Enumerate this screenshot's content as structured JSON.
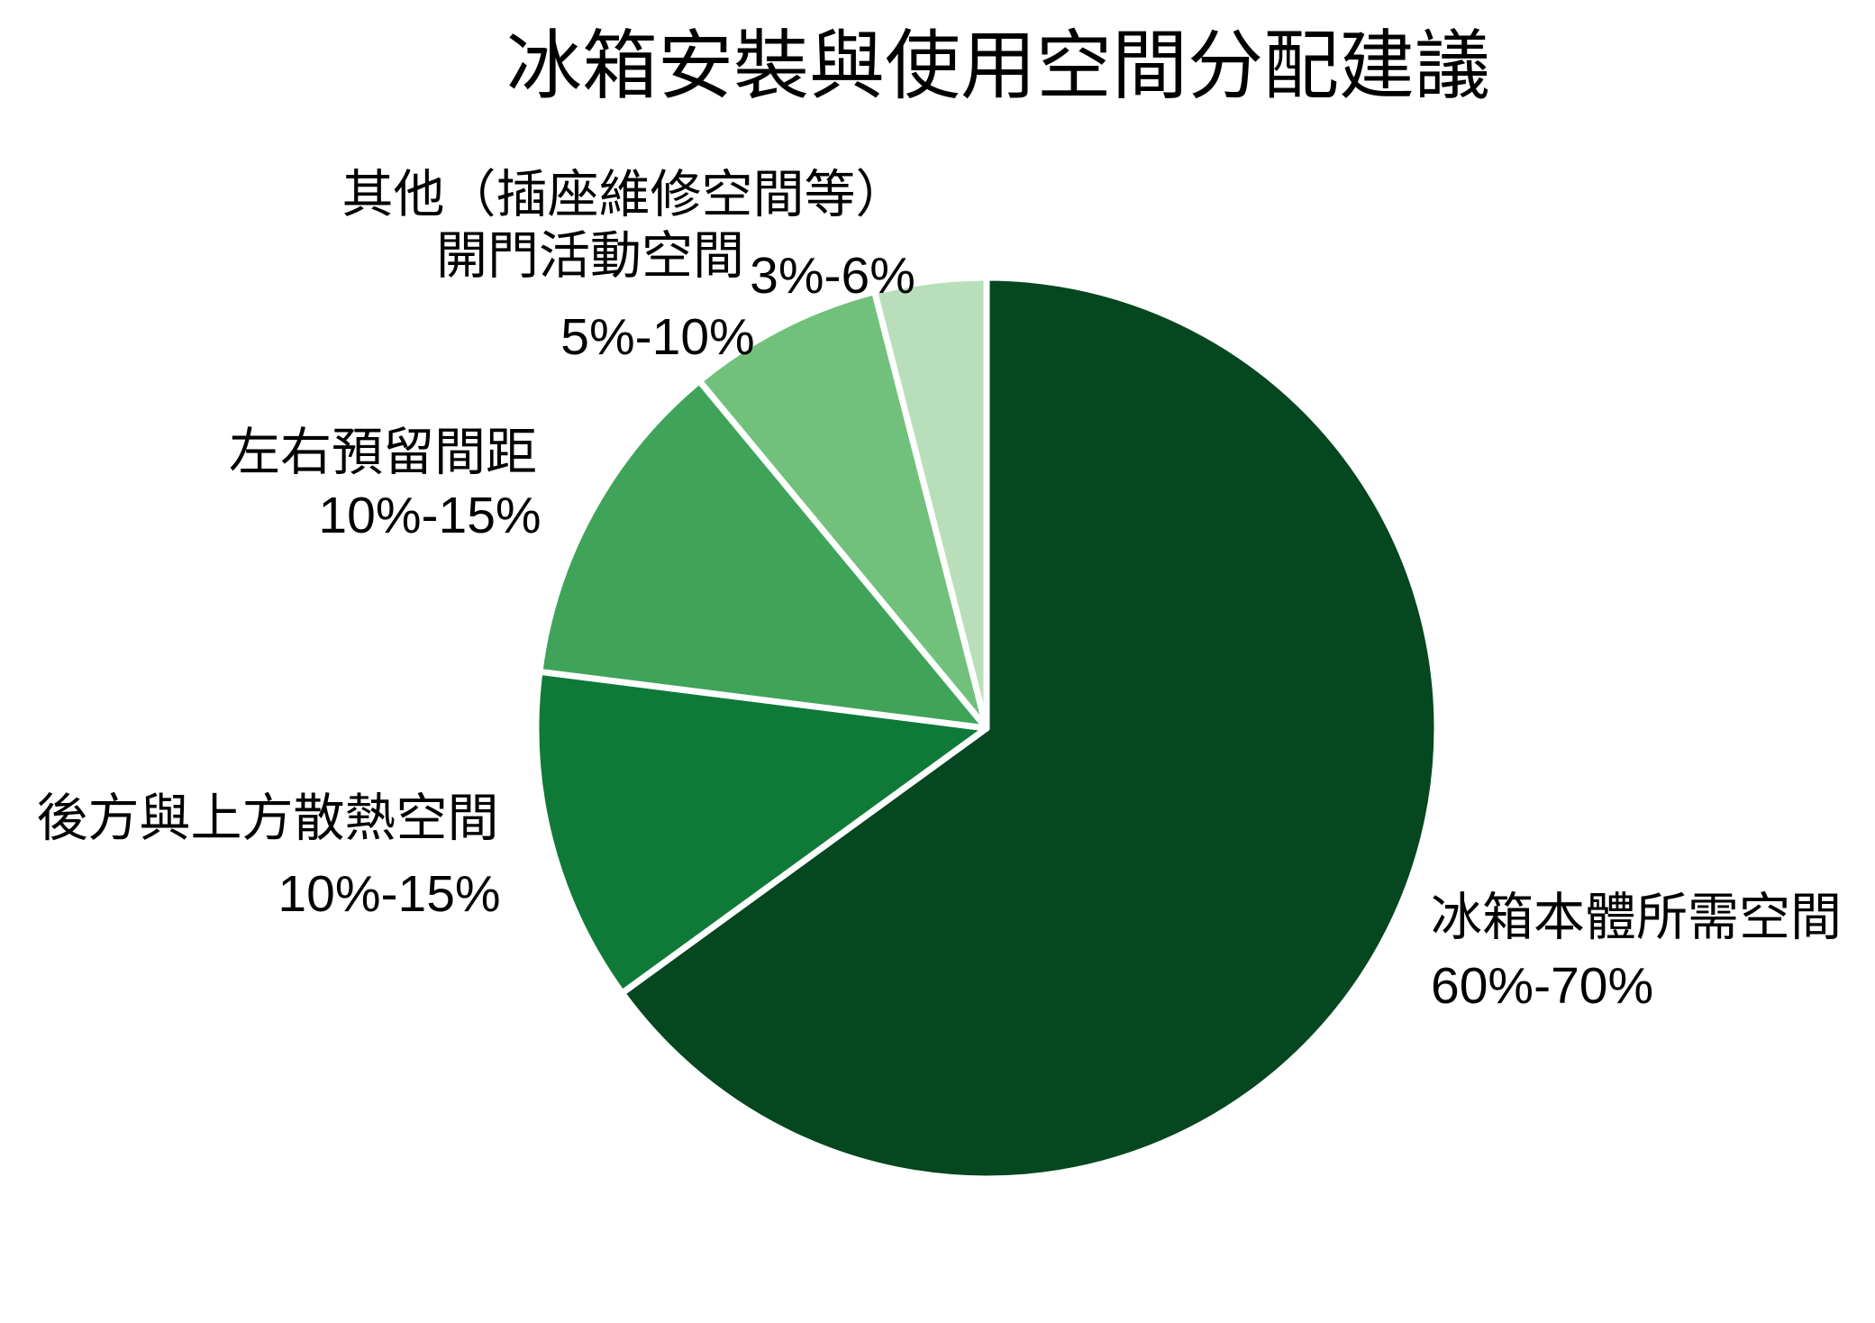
{
  "title": "冰箱安裝與使用空間分配建議",
  "chart_data": {
    "type": "pie",
    "title": "冰箱安裝與使用空間分配建議",
    "legend": "none",
    "label_style": "outside, two lines: category name + percentage range",
    "start_angle": "12 o'clock, clockwise",
    "background_color": "#ffffff",
    "slice_border_color": "#ffffff",
    "slices": [
      {
        "label": "冰箱本體所需空間",
        "range_label": "60%-70%",
        "value": 65,
        "color": "#05471f"
      },
      {
        "label": "後方與上方散熱空間",
        "range_label": "10%-15%",
        "value": 12,
        "color": "#0f7a38"
      },
      {
        "label": "左右預留間距",
        "range_label": "10%-15%",
        "value": 12,
        "color": "#3fa45a"
      },
      {
        "label": "開門活動空間",
        "range_label": "5%-10%",
        "value": 7,
        "color": "#71c17c"
      },
      {
        "label": "其他（插座維修空間等）",
        "range_label": "3%-6%",
        "value": 4,
        "color": "#b8dfba"
      }
    ]
  }
}
